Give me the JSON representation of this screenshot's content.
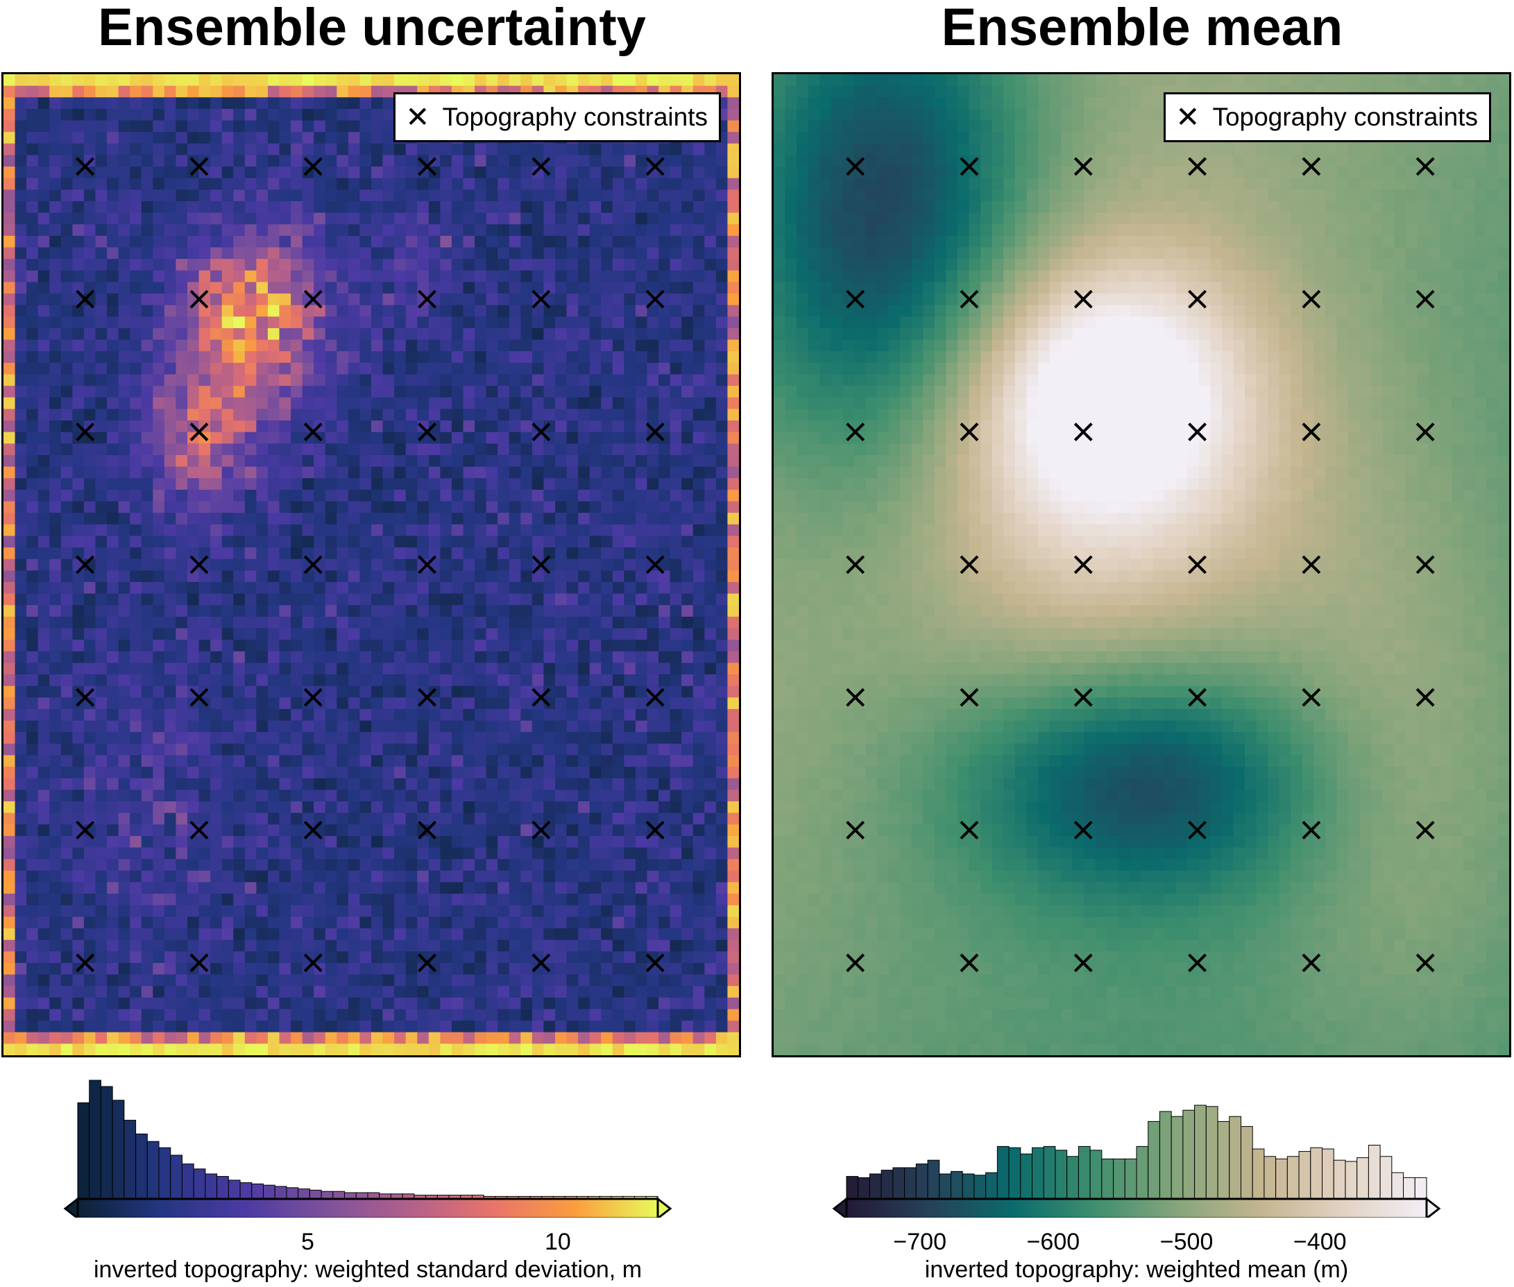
{
  "chart_data": [
    {
      "type": "heatmap",
      "title": "Ensemble uncertainty",
      "colormap": "thermal",
      "colormap_stops": [
        "#0b2236",
        "#243681",
        "#4b3aa3",
        "#7e519c",
        "#b2608b",
        "#e7746a",
        "#fa9d3f",
        "#e8fa5b"
      ],
      "legend": {
        "entry": "Topography constraints",
        "marker": "x-icon",
        "placement": "top-right"
      },
      "constraint_points": {
        "columns": 6,
        "rows": 7
      },
      "colorbar": {
        "label": "inverted topography: weighted standard deviation, m",
        "ticks": [
          5,
          10
        ],
        "range": [
          0.4,
          12.0
        ],
        "extend": "both",
        "histogram": [
          0.77,
          0.95,
          0.9,
          0.79,
          0.63,
          0.52,
          0.46,
          0.41,
          0.35,
          0.28,
          0.24,
          0.2,
          0.18,
          0.15,
          0.13,
          0.12,
          0.11,
          0.1,
          0.09,
          0.08,
          0.07,
          0.06,
          0.06,
          0.05,
          0.05,
          0.05,
          0.04,
          0.04,
          0.04,
          0.03,
          0.03,
          0.03,
          0.03,
          0.03,
          0.03,
          0.02,
          0.02,
          0.02,
          0.02,
          0.02,
          0.02,
          0.02,
          0.02,
          0.02,
          0.02,
          0.02,
          0.02,
          0.02,
          0.02,
          0.02
        ]
      }
    },
    {
      "type": "heatmap",
      "title": "Ensemble mean",
      "colormap": "rain_earth",
      "colormap_stops": [
        "#231a35",
        "#26415a",
        "#0a6b6c",
        "#3f8f6e",
        "#86a57b",
        "#c4b590",
        "#e2d2c2",
        "#f2eff6"
      ],
      "legend": {
        "entry": "Topography constraints",
        "marker": "x-icon",
        "placement": "top-right"
      },
      "constraint_points": {
        "columns": 6,
        "rows": 7
      },
      "colorbar": {
        "label": "inverted topography: weighted mean (m)",
        "ticks": [
          -700,
          -600,
          -500,
          -400
        ],
        "range": [
          -755,
          -320
        ],
        "extend": "both",
        "histogram": [
          0.18,
          0.17,
          0.2,
          0.23,
          0.25,
          0.25,
          0.28,
          0.31,
          0.2,
          0.22,
          0.2,
          0.19,
          0.21,
          0.42,
          0.41,
          0.36,
          0.41,
          0.42,
          0.39,
          0.34,
          0.42,
          0.39,
          0.32,
          0.32,
          0.32,
          0.42,
          0.62,
          0.7,
          0.66,
          0.71,
          0.75,
          0.74,
          0.62,
          0.66,
          0.58,
          0.4,
          0.34,
          0.32,
          0.34,
          0.38,
          0.41,
          0.4,
          0.31,
          0.3,
          0.33,
          0.43,
          0.34,
          0.21,
          0.17,
          0.17
        ]
      }
    }
  ]
}
